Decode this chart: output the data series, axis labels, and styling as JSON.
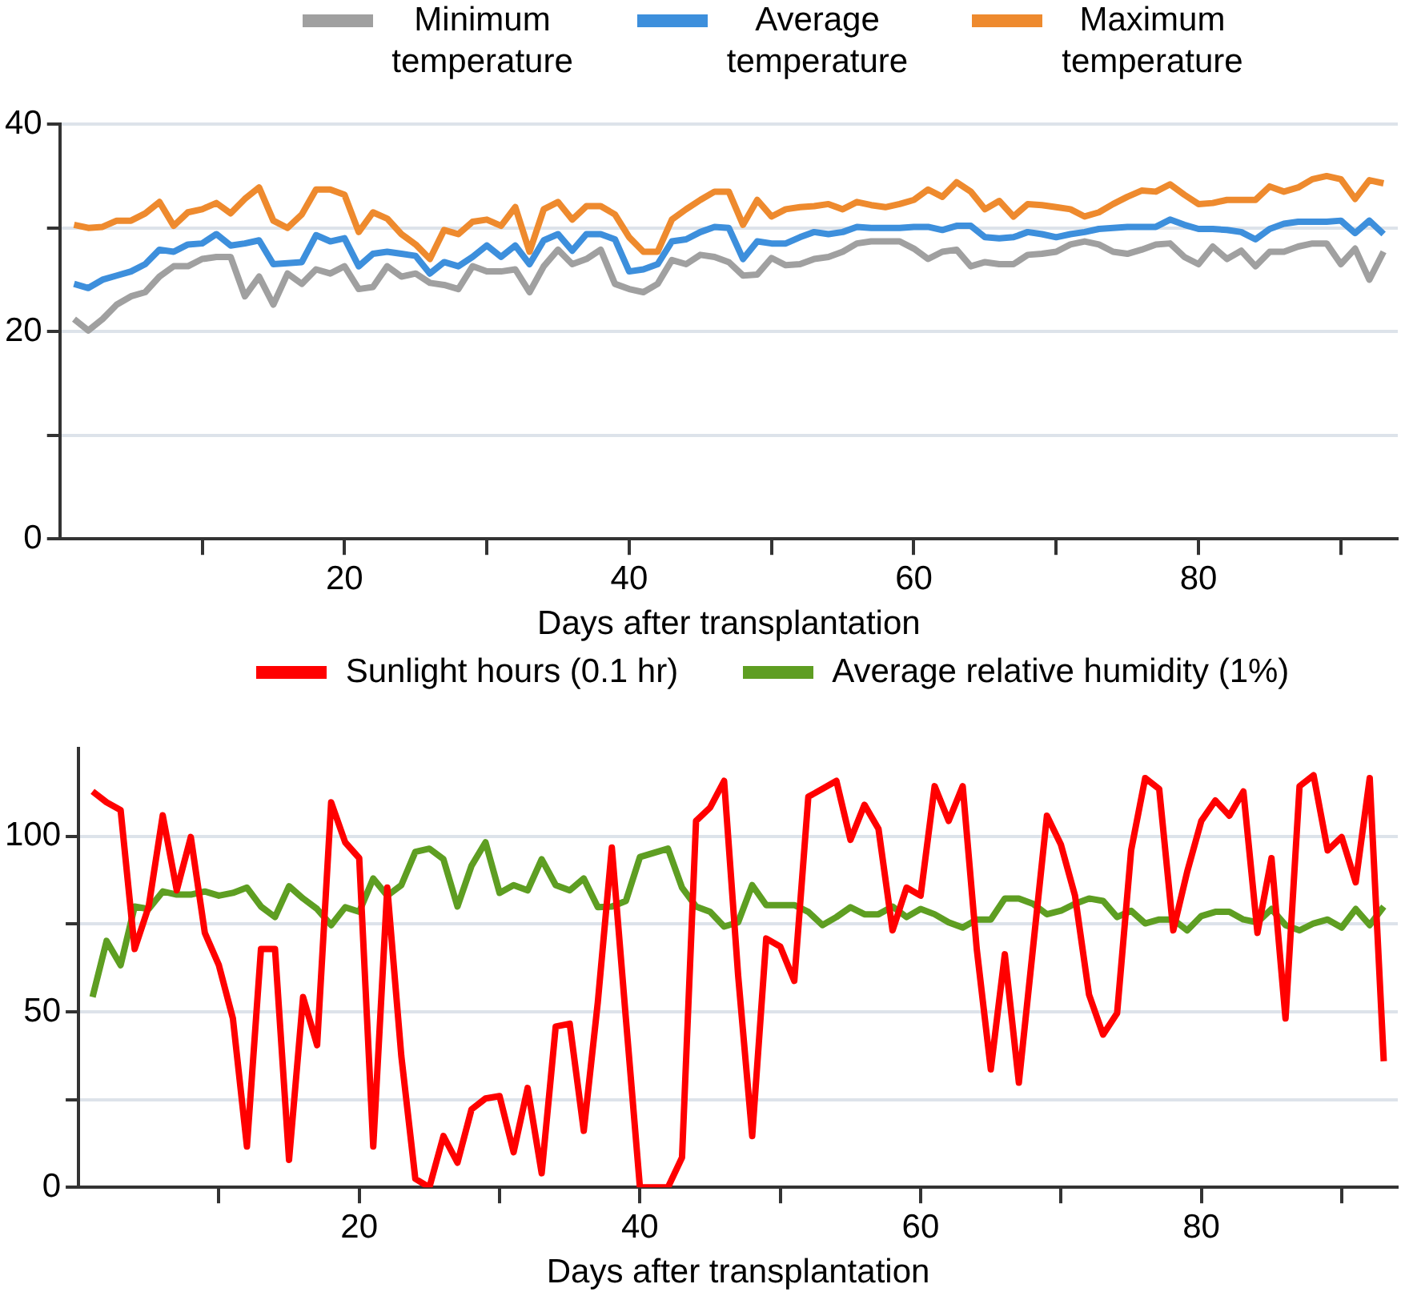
{
  "chart_data": [
    {
      "type": "line",
      "xlabel": "Days after transplantation",
      "legend": "top",
      "grid": "y",
      "marker": "none",
      "line_style": "solid",
      "x": [
        1,
        2,
        3,
        4,
        5,
        6,
        7,
        8,
        9,
        10,
        11,
        12,
        13,
        14,
        15,
        16,
        17,
        18,
        19,
        20,
        21,
        22,
        23,
        24,
        25,
        26,
        27,
        28,
        29,
        30,
        31,
        32,
        33,
        34,
        35,
        36,
        37,
        38,
        39,
        40,
        41,
        42,
        43,
        44,
        45,
        46,
        47,
        48,
        49,
        50,
        51,
        52,
        53,
        54,
        55,
        56,
        57,
        58,
        59,
        60,
        61,
        62,
        63,
        64,
        65,
        66,
        67,
        68,
        69,
        70,
        71,
        72,
        73,
        74,
        75,
        76,
        77,
        78,
        79,
        80,
        81,
        82,
        83,
        84,
        85,
        86,
        87,
        88,
        89,
        90,
        91,
        92,
        93
      ],
      "xlim": [
        0,
        94
      ],
      "xticks": [
        {
          "value": 10,
          "label": null
        },
        20,
        {
          "value": 30,
          "label": null
        },
        40,
        {
          "value": 50,
          "label": null
        },
        60,
        {
          "value": 70,
          "label": null
        },
        80,
        {
          "value": 90,
          "label": null
        }
      ],
      "ylim": [
        0,
        40
      ],
      "yticks": [
        0,
        {
          "value": 10,
          "label": null
        },
        20,
        {
          "value": 30,
          "label": null
        },
        40
      ],
      "series": [
        {
          "name": "Minimum temperature",
          "color": "#a0a0a0",
          "values": [
            21.2,
            20.1,
            21.2,
            22.6,
            23.4,
            23.8,
            25.3,
            26.3,
            26.3,
            27,
            27.2,
            27.2,
            23.4,
            25.3,
            22.6,
            25.6,
            24.6,
            26,
            25.6,
            26.3,
            24.1,
            24.3,
            26.3,
            25.3,
            25.6,
            24.7,
            24.5,
            24.1,
            26.3,
            25.8,
            25.8,
            26,
            23.8,
            26.3,
            27.9,
            26.5,
            27,
            27.9,
            24.6,
            24.1,
            23.8,
            24.6,
            26.9,
            26.5,
            27.4,
            27.2,
            26.7,
            25.4,
            25.5,
            27.1,
            26.4,
            26.5,
            27,
            27.2,
            27.7,
            28.5,
            28.7,
            28.7,
            28.7,
            28,
            27,
            27.7,
            27.9,
            26.3,
            26.7,
            26.5,
            26.5,
            27.4,
            27.5,
            27.7,
            28.4,
            28.7,
            28.4,
            27.7,
            27.5,
            27.9,
            28.4,
            28.5,
            27.2,
            26.5,
            28.2,
            27,
            27.8,
            26.3,
            27.7,
            27.7,
            28.2,
            28.5,
            28.5,
            26.5,
            28,
            25,
            27.7
          ]
        },
        {
          "name": "Average temperature",
          "color": "#3d8fdc",
          "values": [
            24.6,
            24.2,
            25,
            25.4,
            25.8,
            26.5,
            27.9,
            27.7,
            28.4,
            28.5,
            29.4,
            28.3,
            28.5,
            28.8,
            26.5,
            26.6,
            26.7,
            29.3,
            28.7,
            29,
            26.3,
            27.5,
            27.7,
            27.5,
            27.3,
            25.6,
            26.7,
            26.3,
            27.2,
            28.3,
            27.2,
            28.3,
            26.5,
            28.8,
            29.4,
            27.8,
            29.4,
            29.4,
            28.9,
            25.8,
            26,
            26.5,
            28.7,
            28.9,
            29.6,
            30.1,
            30,
            27,
            28.7,
            28.5,
            28.5,
            29.1,
            29.6,
            29.4,
            29.6,
            30.1,
            30,
            30,
            30,
            30.1,
            30.1,
            29.8,
            30.2,
            30.2,
            29.1,
            29,
            29.1,
            29.6,
            29.4,
            29.1,
            29.4,
            29.6,
            29.9,
            30,
            30.1,
            30.1,
            30.1,
            30.8,
            30.3,
            29.9,
            29.9,
            29.8,
            29.6,
            28.9,
            29.9,
            30.4,
            30.6,
            30.6,
            30.6,
            30.7,
            29.5,
            30.7,
            29.4
          ]
        },
        {
          "name": "Maximum temperature",
          "color": "#ee8a2e",
          "values": [
            30.3,
            30,
            30.1,
            30.7,
            30.7,
            31.4,
            32.5,
            30.2,
            31.5,
            31.8,
            32.4,
            31.4,
            32.8,
            33.9,
            30.7,
            30,
            31.3,
            33.7,
            33.7,
            33.2,
            29.6,
            31.5,
            30.9,
            29.4,
            28.4,
            27,
            29.8,
            29.4,
            30.6,
            30.8,
            30.2,
            32,
            27.7,
            31.8,
            32.5,
            30.8,
            32.1,
            32.1,
            31.3,
            29.1,
            27.7,
            27.7,
            30.8,
            31.8,
            32.7,
            33.5,
            33.5,
            30.3,
            32.7,
            31.1,
            31.8,
            32,
            32.1,
            32.3,
            31.8,
            32.5,
            32.2,
            32,
            32.3,
            32.7,
            33.7,
            33,
            34.4,
            33.5,
            31.8,
            32.6,
            31.1,
            32.3,
            32.2,
            32,
            31.8,
            31.1,
            31.5,
            32.3,
            33,
            33.6,
            33.5,
            34.2,
            33.2,
            32.3,
            32.4,
            32.7,
            32.7,
            32.7,
            34,
            33.5,
            33.9,
            34.7,
            35,
            34.7,
            32.8,
            34.6,
            34.3
          ]
        }
      ]
    },
    {
      "type": "line",
      "xlabel": "Days after transplantation",
      "legend": "top",
      "grid": "y",
      "marker": "none",
      "line_style": "solid",
      "x": [
        1,
        2,
        3,
        4,
        5,
        6,
        7,
        8,
        9,
        10,
        11,
        12,
        13,
        14,
        15,
        16,
        17,
        18,
        19,
        20,
        21,
        22,
        23,
        24,
        25,
        26,
        27,
        28,
        29,
        30,
        31,
        32,
        33,
        34,
        35,
        36,
        37,
        38,
        39,
        40,
        41,
        42,
        43,
        44,
        45,
        46,
        47,
        48,
        49,
        50,
        51,
        52,
        53,
        54,
        55,
        56,
        57,
        58,
        59,
        60,
        61,
        62,
        63,
        64,
        65,
        66,
        67,
        68,
        69,
        70,
        71,
        72,
        73,
        74,
        75,
        76,
        77,
        78,
        79,
        80,
        81,
        82,
        83,
        84,
        85,
        86,
        87,
        88,
        89,
        90,
        91,
        92,
        93
      ],
      "xlim": [
        0,
        94
      ],
      "xticks": [
        {
          "value": 10,
          "label": null
        },
        20,
        {
          "value": 30,
          "label": null
        },
        40,
        {
          "value": 50,
          "label": null
        },
        60,
        {
          "value": 70,
          "label": null
        },
        80,
        {
          "value": 90,
          "label": null
        }
      ],
      "ylim": [
        0,
        125
      ],
      "yticks": [
        0,
        {
          "value": 25,
          "label": null
        },
        50,
        {
          "value": 75,
          "label": null
        },
        100
      ],
      "series": [
        {
          "name": "Sunlight hours (0.1 hr)",
          "color": "#ff0000",
          "values": [
            112.8,
            109.7,
            107.5,
            67.9,
            80,
            106,
            84.6,
            99.8,
            72.5,
            63.3,
            48.1,
            11.6,
            67.9,
            67.9,
            7.8,
            54.2,
            40.5,
            109.7,
            98.3,
            93.8,
            11.6,
            85.4,
            37.4,
            2.4,
            0,
            14.6,
            7,
            22.2,
            25.3,
            26,
            10,
            28.3,
            4,
            45.8,
            46.6,
            16.1,
            52.7,
            96.8,
            48.1,
            0,
            0,
            0,
            8.5,
            104.4,
            108.2,
            115.8,
            60.3,
            14.6,
            70.9,
            68.6,
            58.8,
            111.3,
            113.5,
            115.8,
            99,
            109,
            102.1,
            73.2,
            85.4,
            83.1,
            114.3,
            104.4,
            114.3,
            67.9,
            33.6,
            66.4,
            29.8,
            67.9,
            105.9,
            97.6,
            83.1,
            54.9,
            43.5,
            49.6,
            96,
            116.6,
            113.5,
            73.2,
            90,
            104.4,
            110.2,
            105.9,
            112.8,
            72.5,
            93.8,
            48.1,
            114.3,
            117.4,
            96,
            99.8,
            86.9,
            116.6,
            35.9
          ]
        },
        {
          "name": "Average relative humidity (1%)",
          "color": "#5e9e22",
          "values": [
            54.2,
            70.2,
            63.3,
            80,
            79.3,
            84.3,
            83.4,
            83.4,
            84.3,
            83.1,
            83.9,
            85.4,
            80,
            77,
            85.8,
            82.3,
            79.3,
            74.7,
            79.8,
            78.5,
            88,
            83.1,
            86.1,
            95.6,
            96.5,
            93.5,
            80,
            91.6,
            98.3,
            83.9,
            86.1,
            84.6,
            93.5,
            86.1,
            84.6,
            88,
            79.8,
            80,
            81.6,
            94.1,
            95.3,
            96.5,
            85.4,
            80,
            78.5,
            74.3,
            75.5,
            86.1,
            80.4,
            80.4,
            80.4,
            78.5,
            74.7,
            77,
            79.8,
            77.8,
            77.8,
            80,
            77,
            79.3,
            77.8,
            75.5,
            74,
            76.3,
            76.3,
            82.3,
            82.3,
            80.8,
            77.8,
            78.8,
            80.8,
            82.3,
            81.6,
            77,
            78.8,
            75.2,
            76.3,
            76.3,
            73.2,
            77.3,
            78.5,
            78.5,
            76.3,
            75.5,
            79.3,
            74.7,
            73.2,
            75.2,
            76.3,
            74,
            79.3,
            74.7,
            80
          ]
        }
      ]
    }
  ]
}
